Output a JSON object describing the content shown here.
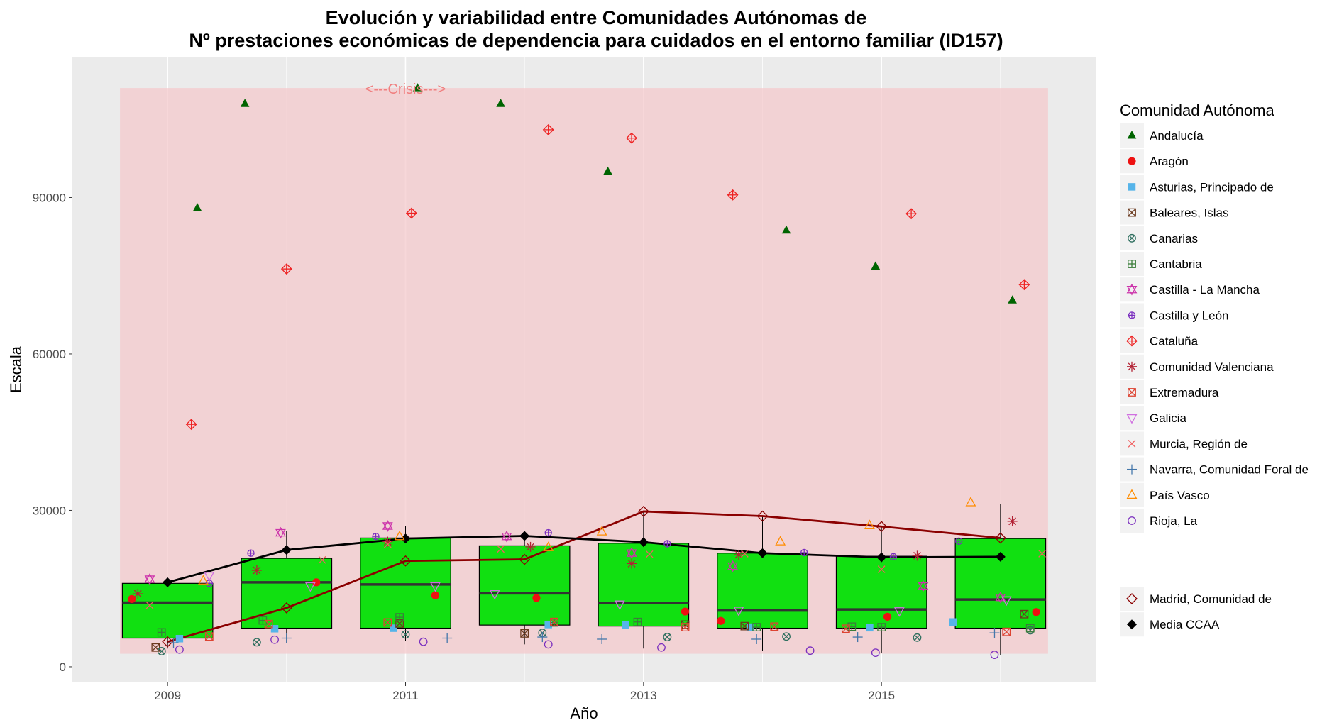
{
  "chart_data": {
    "type": "box+scatter+line",
    "title_line1": "Evolución y variabilidad entre Comunidades Autónomas de",
    "title_line2": "Nº prestaciones económicas de dependencia para cuidados en el entorno familiar (ID157)",
    "xlabel": "Año",
    "ylabel": "Escala",
    "xlim": [
      2008.2,
      2016.8
    ],
    "ylim": [
      -3000,
      117000
    ],
    "x_ticks": [
      2009,
      2011,
      2013,
      2015
    ],
    "x_tick_labels": [
      "2009",
      "2011",
      "2013",
      "2015"
    ],
    "y_ticks": [
      0,
      30000,
      60000,
      90000
    ],
    "y_tick_labels": [
      "0",
      "30000",
      "60000",
      "90000"
    ],
    "grid": true,
    "legend_position": "right",
    "legend_title": "Comunidad Autónoma",
    "annotation": {
      "text": "<---Crisis--->",
      "x": 2011,
      "y": 111000
    },
    "crisis_band": {
      "x": [
        2008.6,
        2016.4
      ],
      "y": [
        2500,
        111000
      ],
      "color": "#f4c9cc"
    },
    "box_fill": "#11e011",
    "boxes": [
      {
        "year": 2009,
        "q1": 5500,
        "median": 12300,
        "q3": 16000,
        "lo": 3500,
        "hi": 16700
      },
      {
        "year": 2010,
        "q1": 7400,
        "median": 16200,
        "q3": 20800,
        "lo": 4500,
        "hi": 26000
      },
      {
        "year": 2011,
        "q1": 7400,
        "median": 15800,
        "q3": 24700,
        "lo": 5000,
        "hi": 27000
      },
      {
        "year": 2012,
        "q1": 8000,
        "median": 14100,
        "q3": 23200,
        "lo": 4300,
        "hi": 25700
      },
      {
        "year": 2013,
        "q1": 7800,
        "median": 12200,
        "q3": 23700,
        "lo": 3500,
        "hi": 29800
      },
      {
        "year": 2014,
        "q1": 7400,
        "median": 10800,
        "q3": 21800,
        "lo": 3000,
        "hi": 29000
      },
      {
        "year": 2015,
        "q1": 7400,
        "median": 11000,
        "q3": 21200,
        "lo": 2600,
        "hi": 27000
      },
      {
        "year": 2016,
        "q1": 7400,
        "median": 12900,
        "q3": 24600,
        "lo": 2200,
        "hi": 31200
      }
    ],
    "series": [
      {
        "name": "Andalucía",
        "shape": "triangle-filled",
        "color": "#006400",
        "points": [
          [
            2009.25,
            88000
          ],
          [
            2009.65,
            108000
          ],
          [
            2011.1,
            111000
          ],
          [
            2011.8,
            108000
          ],
          [
            2012.7,
            95000
          ],
          [
            2014.2,
            83700
          ],
          [
            2014.95,
            76800
          ],
          [
            2016.1,
            70300
          ]
        ]
      },
      {
        "name": "Aragón",
        "shape": "circle-filled",
        "color": "#ee1111",
        "points": [
          [
            2008.7,
            13000
          ],
          [
            2010.25,
            16200
          ],
          [
            2011.25,
            13700
          ],
          [
            2012.1,
            13200
          ],
          [
            2013.35,
            10600
          ],
          [
            2013.65,
            8800
          ],
          [
            2015.05,
            9600
          ],
          [
            2016.3,
            10500
          ]
        ]
      },
      {
        "name": "Asturias, Principado de",
        "shape": "square-filled",
        "color": "#56b4e9",
        "points": [
          [
            2009.1,
            5400
          ],
          [
            2009.9,
            7300
          ],
          [
            2010.9,
            7400
          ],
          [
            2012.2,
            8100
          ],
          [
            2012.85,
            8000
          ],
          [
            2013.9,
            7600
          ],
          [
            2014.9,
            7500
          ],
          [
            2015.6,
            8600
          ]
        ]
      },
      {
        "name": "Baleares, Islas",
        "shape": "square-x",
        "color": "#6b3a1f",
        "points": [
          [
            2008.9,
            3700
          ],
          [
            2010.95,
            8300
          ],
          [
            2012.0,
            6400
          ],
          [
            2013.35,
            8100
          ],
          [
            2013.85,
            7800
          ],
          [
            2016.2,
            10100
          ]
        ]
      },
      {
        "name": "Canarias",
        "shape": "circle-x",
        "color": "#2f6f5f",
        "points": [
          [
            2008.95,
            3000
          ],
          [
            2009.75,
            4700
          ],
          [
            2011.0,
            6200
          ],
          [
            2012.15,
            6500
          ],
          [
            2013.2,
            5700
          ],
          [
            2014.2,
            5800
          ],
          [
            2015.3,
            5600
          ],
          [
            2016.25,
            7000
          ]
        ]
      },
      {
        "name": "Cantabria",
        "shape": "square-plus",
        "color": "#3a7d3a",
        "points": [
          [
            2008.95,
            6600
          ],
          [
            2009.8,
            8900
          ],
          [
            2010.95,
            9500
          ],
          [
            2012.25,
            8500
          ],
          [
            2012.95,
            8600
          ],
          [
            2013.95,
            7600
          ],
          [
            2014.75,
            7700
          ],
          [
            2015.0,
            7600
          ],
          [
            2016.25,
            7400
          ]
        ]
      },
      {
        "name": "Castilla - La Mancha",
        "shape": "star-of-david",
        "color": "#cc33aa",
        "points": [
          [
            2008.85,
            16800
          ],
          [
            2009.95,
            25700
          ],
          [
            2010.85,
            27000
          ],
          [
            2011.85,
            25000
          ],
          [
            2012.9,
            21800
          ],
          [
            2013.75,
            19300
          ],
          [
            2015.35,
            15500
          ],
          [
            2016.0,
            13300
          ]
        ]
      },
      {
        "name": "Castilla y León",
        "shape": "circle-plus",
        "color": "#7b2fbf",
        "points": [
          [
            2009.35,
            16000
          ],
          [
            2009.7,
            21800
          ],
          [
            2010.75,
            25000
          ],
          [
            2012.2,
            25700
          ],
          [
            2013.2,
            23600
          ],
          [
            2014.35,
            21900
          ],
          [
            2015.1,
            21100
          ],
          [
            2015.65,
            24100
          ]
        ]
      },
      {
        "name": "Cataluña",
        "shape": "diamond-plus",
        "color": "#ee2222",
        "points": [
          [
            2009.2,
            46500
          ],
          [
            2010.0,
            76300
          ],
          [
            2011.05,
            87000
          ],
          [
            2012.2,
            103000
          ],
          [
            2012.9,
            101400
          ],
          [
            2013.75,
            90500
          ],
          [
            2015.25,
            86900
          ],
          [
            2016.2,
            73300
          ]
        ]
      },
      {
        "name": "Comunidad Valenciana",
        "shape": "asterisk",
        "color": "#b22234",
        "points": [
          [
            2008.75,
            14000
          ],
          [
            2009.75,
            18500
          ],
          [
            2010.85,
            24000
          ],
          [
            2012.05,
            23000
          ],
          [
            2012.9,
            19800
          ],
          [
            2013.8,
            21500
          ],
          [
            2015.3,
            21300
          ],
          [
            2016.1,
            27900
          ]
        ]
      },
      {
        "name": "Extremadura",
        "shape": "square-x",
        "color": "#dd4433",
        "points": [
          [
            2009.35,
            5800
          ],
          [
            2009.85,
            8200
          ],
          [
            2010.85,
            8500
          ],
          [
            2012.25,
            8600
          ],
          [
            2013.35,
            7600
          ],
          [
            2014.1,
            7700
          ],
          [
            2014.7,
            7300
          ],
          [
            2016.05,
            6700
          ]
        ]
      },
      {
        "name": "Galicia",
        "shape": "triangle-down",
        "color": "#d070e0",
        "points": [
          [
            2009.35,
            17500
          ],
          [
            2010.2,
            15500
          ],
          [
            2011.25,
            15500
          ],
          [
            2011.75,
            14000
          ],
          [
            2012.8,
            12000
          ],
          [
            2013.8,
            10800
          ],
          [
            2015.15,
            10700
          ],
          [
            2016.05,
            12800
          ]
        ]
      },
      {
        "name": "Murcia, Región de",
        "shape": "x",
        "color": "#f06060",
        "points": [
          [
            2008.85,
            11800
          ],
          [
            2010.3,
            20500
          ],
          [
            2010.85,
            23500
          ],
          [
            2011.8,
            22600
          ],
          [
            2013.05,
            21600
          ],
          [
            2013.85,
            21700
          ],
          [
            2015.0,
            18700
          ],
          [
            2016.35,
            21700
          ]
        ]
      },
      {
        "name": "Navarra, Comunidad Foral de",
        "shape": "plus",
        "color": "#4477aa",
        "points": [
          [
            2009.05,
            4600
          ],
          [
            2010.0,
            5500
          ],
          [
            2011.35,
            5500
          ],
          [
            2012.15,
            5700
          ],
          [
            2012.65,
            5300
          ],
          [
            2013.95,
            5300
          ],
          [
            2014.8,
            5700
          ],
          [
            2015.95,
            6500
          ]
        ]
      },
      {
        "name": "País Vasco",
        "shape": "triangle-open",
        "color": "#ff8c00",
        "points": [
          [
            2009.3,
            16500
          ],
          [
            2010.95,
            25000
          ],
          [
            2012.2,
            22900
          ],
          [
            2012.65,
            25900
          ],
          [
            2014.15,
            24000
          ],
          [
            2014.9,
            27100
          ],
          [
            2015.75,
            31500
          ]
        ]
      },
      {
        "name": "Rioja, La",
        "shape": "circle-open",
        "color": "#7b2fbf",
        "points": [
          [
            2009.1,
            3300
          ],
          [
            2009.9,
            5200
          ],
          [
            2011.15,
            4800
          ],
          [
            2012.2,
            4300
          ],
          [
            2013.15,
            3700
          ],
          [
            2014.4,
            3100
          ],
          [
            2014.95,
            2700
          ],
          [
            2015.95,
            2300
          ]
        ]
      }
    ],
    "extra_legend": [
      {
        "name": "Madrid, Comunidad de",
        "shape": "diamond-open",
        "color": "#8b0000"
      },
      {
        "name": "Media CCAA",
        "shape": "diamond-filled",
        "color": "#000000"
      }
    ],
    "lines": [
      {
        "name": "Madrid, Comunidad de",
        "color": "#8b0000",
        "x": [
          2009,
          2010,
          2011,
          2012,
          2013,
          2014,
          2015,
          2016
        ],
        "y": [
          4800,
          11300,
          20300,
          20600,
          29800,
          28900,
          26900,
          24700
        ]
      },
      {
        "name": "Media CCAA",
        "color": "#000000",
        "x": [
          2009,
          2010,
          2011,
          2012,
          2013,
          2014,
          2015,
          2016
        ],
        "y": [
          16200,
          22400,
          24600,
          25100,
          23900,
          21800,
          21000,
          21100
        ]
      }
    ]
  }
}
